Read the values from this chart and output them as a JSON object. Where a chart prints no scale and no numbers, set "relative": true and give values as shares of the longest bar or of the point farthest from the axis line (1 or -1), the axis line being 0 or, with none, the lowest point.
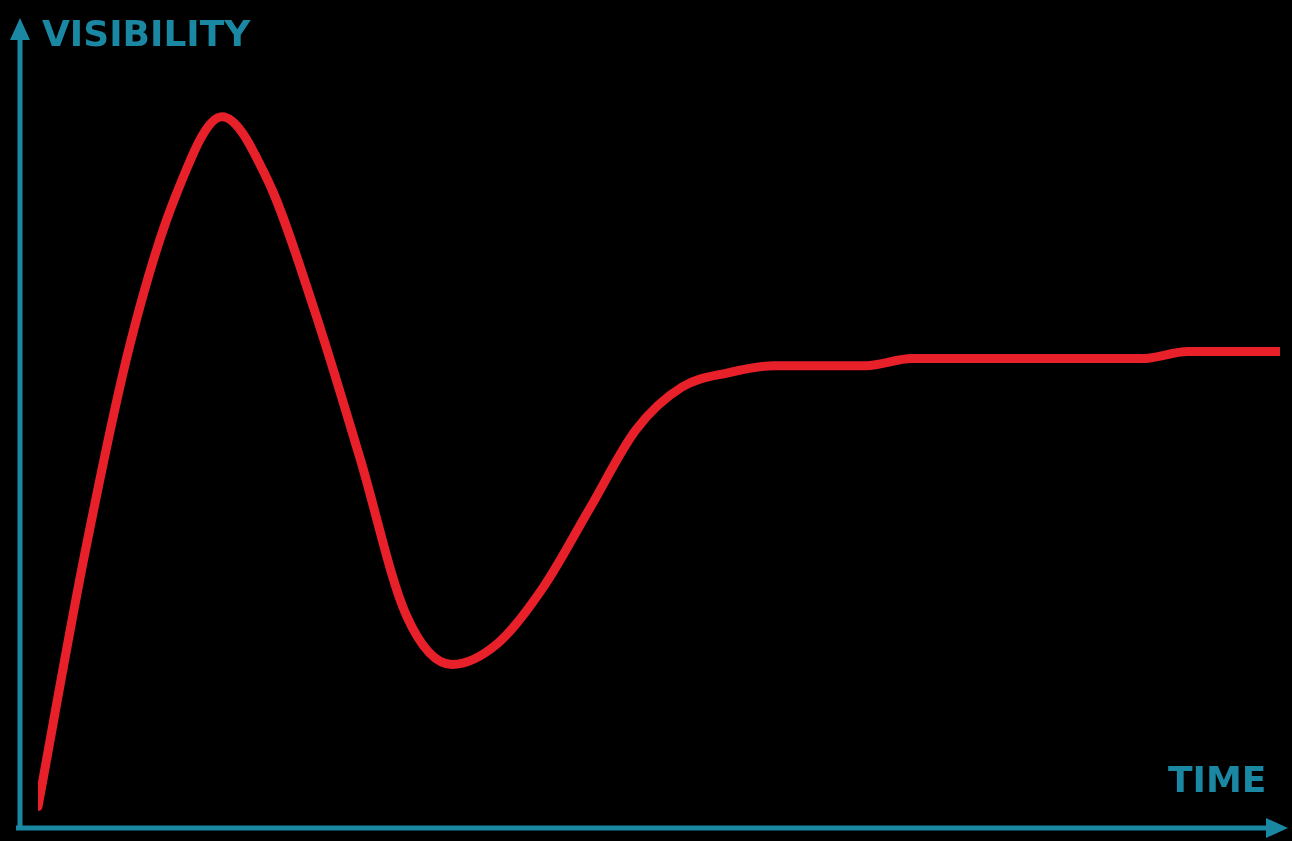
{
  "chart_data": {
    "type": "line",
    "xlabel": "TIME",
    "ylabel": "VISIBILITY",
    "relative": true,
    "marker": "none",
    "line_style": "solid",
    "categories": [
      null,
      null,
      null,
      null,
      null,
      null,
      null,
      null,
      null,
      null,
      null,
      null,
      null,
      null,
      null,
      null,
      null,
      null,
      null,
      null,
      null,
      null,
      null,
      null,
      null,
      null,
      null,
      null
    ],
    "series": [
      {
        "color": "#e8202a",
        "values": [
          0.03,
          0.38,
          0.68,
          0.89,
          1,
          0.91,
          0.73,
          0.52,
          0.3,
          0.23,
          0.26,
          0.34,
          0.45,
          0.56,
          0.62,
          0.64,
          0.65,
          0.65,
          0.65,
          0.66,
          0.66,
          0.66,
          0.66,
          0.66,
          0.66,
          0.67,
          0.67,
          0.67
        ]
      }
    ]
  }
}
